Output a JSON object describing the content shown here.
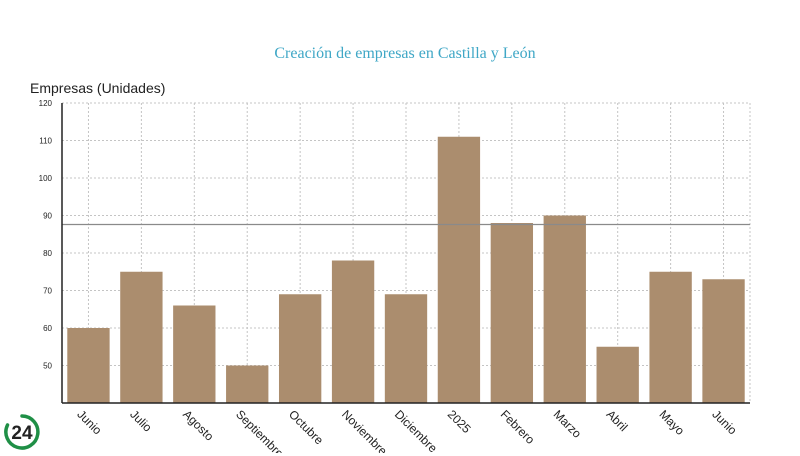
{
  "colors": {
    "title": "#3fa7c6",
    "bar": "#ab8d6e",
    "grid": "#c4c4c4",
    "axis": "#222222",
    "reference_line": "#8a8a8a",
    "logo": "#1f8f46"
  },
  "logo": {
    "text": "24",
    "icon": "logo-24-badge"
  },
  "chart_data": {
    "type": "bar",
    "title": "Creación de empresas en Castilla y León",
    "xlabel": "",
    "ylabel": "Empresas (Unidades)",
    "ylim": [
      40,
      120
    ],
    "yticks": [
      50,
      60,
      70,
      80,
      90,
      100,
      110,
      120
    ],
    "categories": [
      "Junio",
      "Julio",
      "Agosto",
      "Septiembre",
      "Octubre",
      "Noviembre",
      "Diciembre",
      "2025",
      "Febrero",
      "Marzo",
      "Abril",
      "Mayo",
      "Junio"
    ],
    "values": [
      60,
      75,
      66,
      50,
      69,
      78,
      69,
      111,
      88,
      90,
      55,
      75,
      73
    ],
    "reference_line": 87.6,
    "grid": true,
    "legend": "none"
  }
}
